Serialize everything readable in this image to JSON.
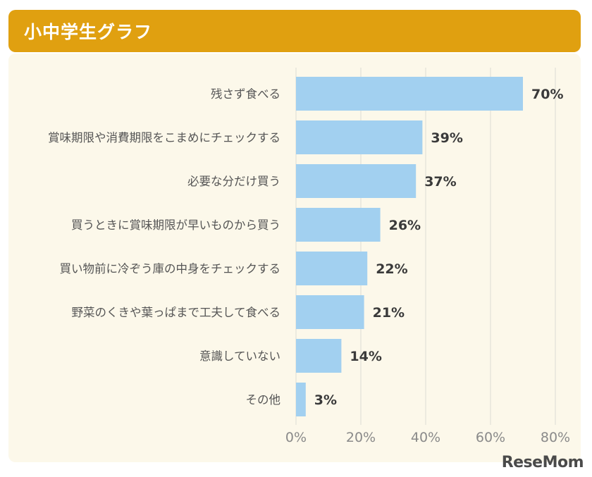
{
  "header": {
    "title": "小中学生グラフ"
  },
  "watermark": {
    "text": "ReseMom"
  },
  "colors": {
    "title_bg": "#e0a010",
    "panel_bg": "#fcf8ea",
    "bar": "#a2d0f0",
    "grid": "#dcdcd4",
    "label_text": "#555555",
    "value_text": "#3a3a3a",
    "tick_text": "#8a8a8a"
  },
  "chart_data": {
    "type": "bar",
    "orientation": "horizontal",
    "title": "小中学生グラフ",
    "xlabel": "",
    "ylabel": "",
    "xlim": [
      0,
      80
    ],
    "xticks": [
      "0%",
      "20%",
      "40%",
      "60%",
      "80%"
    ],
    "grid": true,
    "categories": [
      "残さず食べる",
      "賞味期限や消費期限をこまめにチェックする",
      "必要な分だけ買う",
      "買うときに賞味期限が早いものから買う",
      "買い物前に冷ぞう庫の中身をチェックする",
      "野菜のくきや葉っぱまで工夫して食べる",
      "意識していない",
      "その他"
    ],
    "values": [
      70,
      39,
      37,
      26,
      22,
      21,
      14,
      3
    ],
    "value_labels": [
      "70%",
      "39%",
      "37%",
      "26%",
      "22%",
      "21%",
      "14%",
      "3%"
    ]
  }
}
